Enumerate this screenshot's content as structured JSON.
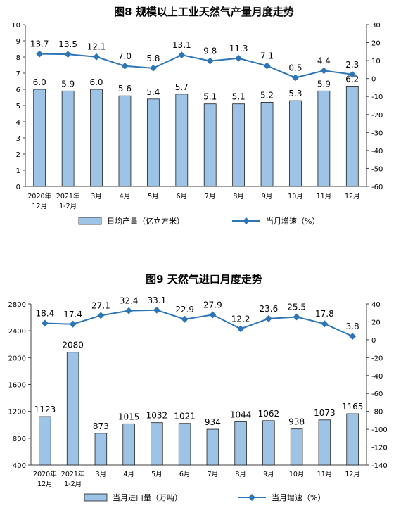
{
  "colors": {
    "bar_fill": "#9DC3E6",
    "bar_stroke": "#1F1F1F",
    "line": "#2E75B6",
    "axis": "#404040",
    "text": "#000000"
  },
  "chart_data": [
    {
      "type": "bar+line",
      "title": "图8  规模以上工业天然气产量月度走势",
      "categories": [
        [
          "2020年",
          "12月"
        ],
        [
          "2021年",
          "1-2月"
        ],
        [
          "3月"
        ],
        [
          "4月"
        ],
        [
          "5月"
        ],
        [
          "6月"
        ],
        [
          "7月"
        ],
        [
          "8月"
        ],
        [
          "9月"
        ],
        [
          "10月"
        ],
        [
          "11月"
        ],
        [
          "12月"
        ]
      ],
      "series": [
        {
          "name": "日均产量（亿立方米）",
          "kind": "bar",
          "axis": "left",
          "values": [
            6.0,
            5.9,
            6.0,
            5.6,
            5.4,
            5.7,
            5.1,
            5.1,
            5.2,
            5.3,
            5.9,
            6.2
          ],
          "labels": [
            "6.0",
            "5.9",
            "6.0",
            "5.6",
            "5.4",
            "5.7",
            "5.1",
            "5.1",
            "5.2",
            "5.3",
            "5.9",
            "6.2"
          ]
        },
        {
          "name": "当月增速（%）",
          "kind": "line",
          "axis": "right",
          "values": [
            13.7,
            13.5,
            12.1,
            7.0,
            5.8,
            13.1,
            9.8,
            11.3,
            7.1,
            0.5,
            4.4,
            2.3
          ],
          "labels": [
            "13.7",
            "13.5",
            "12.1",
            "7.0",
            "5.8",
            "13.1",
            "9.8",
            "11.3",
            "7.1",
            "0.5",
            "4.4",
            "2.3"
          ]
        }
      ],
      "ylim_left": [
        0,
        10
      ],
      "yticks_left": [
        0,
        1,
        2,
        3,
        4,
        5,
        6,
        7,
        8,
        9,
        10
      ],
      "ylim_right": [
        -60,
        30
      ],
      "yticks_right": [
        -60,
        -50,
        -40,
        -30,
        -20,
        -10,
        0,
        10,
        20,
        30
      ],
      "legend_position": "bottom"
    },
    {
      "type": "bar+line",
      "title": "图9  天然气进口月度走势",
      "categories": [
        [
          "2020年",
          "12月"
        ],
        [
          "2021年",
          "1-2月"
        ],
        [
          "3月"
        ],
        [
          "4月"
        ],
        [
          "5月"
        ],
        [
          "6月"
        ],
        [
          "7月"
        ],
        [
          "8月"
        ],
        [
          "9月"
        ],
        [
          "10月"
        ],
        [
          "11月"
        ],
        [
          "12月"
        ]
      ],
      "series": [
        {
          "name": "当月进口量（万吨）",
          "kind": "bar",
          "axis": "left",
          "values": [
            1123,
            2080,
            873,
            1015,
            1032,
            1021,
            934,
            1044,
            1062,
            938,
            1073,
            1165
          ],
          "labels": [
            "1123",
            "2080",
            "873",
            "1015",
            "1032",
            "1021",
            "934",
            "1044",
            "1062",
            "938",
            "1073",
            "1165"
          ]
        },
        {
          "name": "当月增速（%）",
          "kind": "line",
          "axis": "right",
          "values": [
            18.4,
            17.4,
            27.1,
            32.4,
            33.1,
            22.9,
            27.9,
            12.2,
            23.6,
            25.5,
            17.8,
            3.8
          ],
          "labels": [
            "18.4",
            "17.4",
            "27.1",
            "32.4",
            "33.1",
            "22.9",
            "27.9",
            "12.2",
            "23.6",
            "25.5",
            "17.8",
            "3.8"
          ]
        }
      ],
      "ylim_left": [
        400,
        2800
      ],
      "yticks_left": [
        400,
        800,
        1200,
        1600,
        2000,
        2400,
        2800
      ],
      "ylim_right": [
        -140,
        40
      ],
      "yticks_right": [
        -140,
        -120,
        -100,
        -80,
        -60,
        -40,
        -20,
        0,
        20,
        40
      ],
      "legend_position": "bottom"
    }
  ]
}
